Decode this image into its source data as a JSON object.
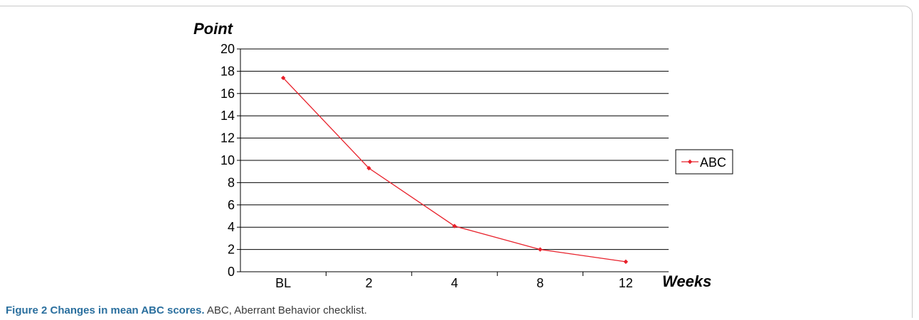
{
  "chart_data": {
    "type": "line",
    "categories": [
      "BL",
      "2",
      "4",
      "8",
      "12"
    ],
    "series": [
      {
        "name": "ABC",
        "values": [
          17.4,
          9.3,
          4.1,
          2.0,
          0.9
        ],
        "color": "#e8202a"
      }
    ],
    "ylabel": "Point",
    "xlabel": "Weeks",
    "ylim": [
      0,
      20
    ],
    "yticks": [
      0,
      2,
      4,
      6,
      8,
      10,
      12,
      14,
      16,
      18,
      20
    ],
    "grid": true,
    "legend": "right"
  },
  "caption": {
    "label": "Figure 2 Changes in mean ABC scores.",
    "text": " ABC, Aberrant Behavior checklist."
  }
}
